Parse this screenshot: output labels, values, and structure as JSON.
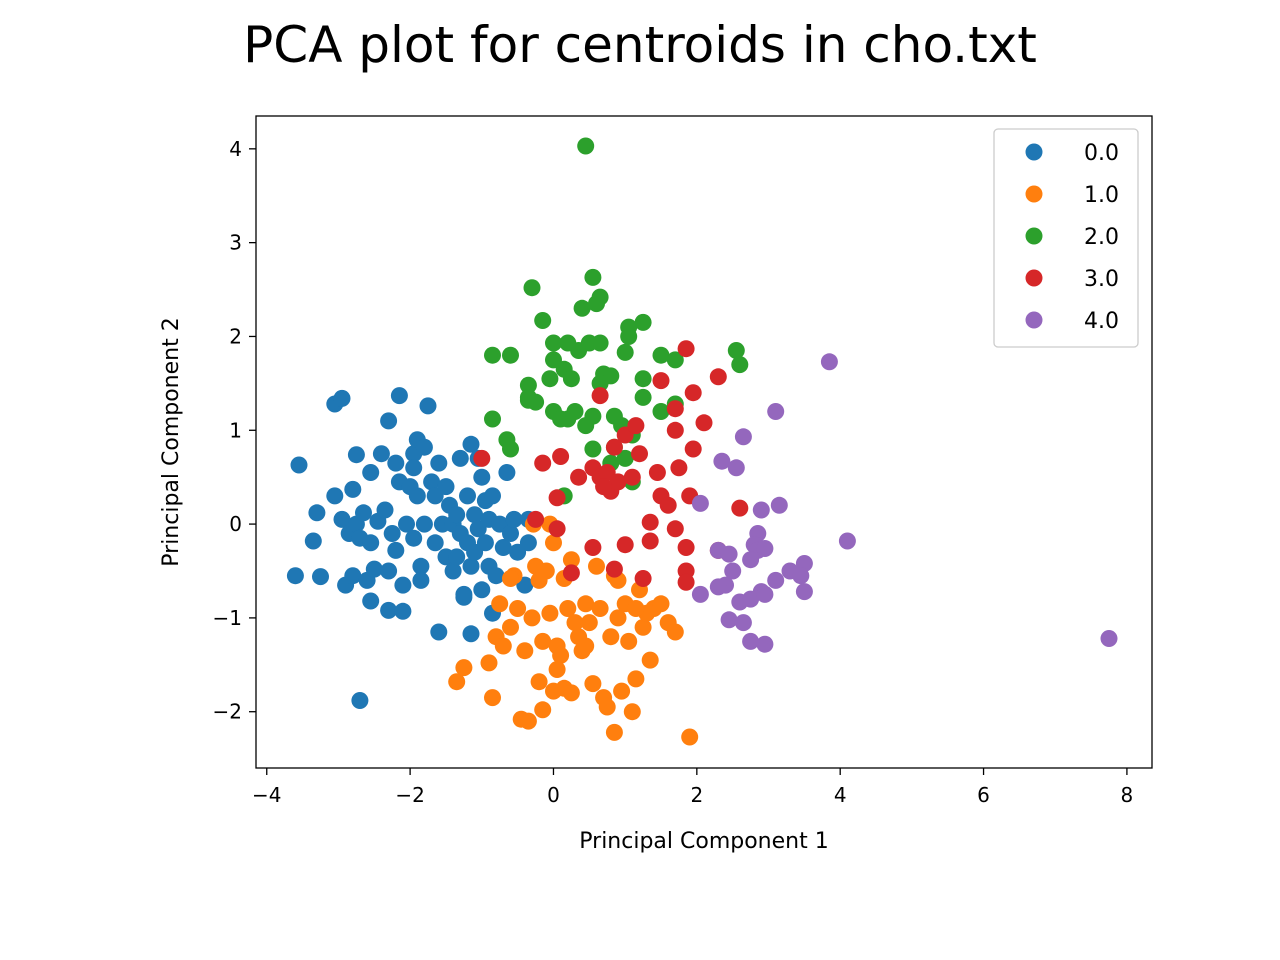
{
  "chart_data": {
    "type": "scatter",
    "title": "PCA plot for centroids in cho.txt",
    "xlabel": "Principal Component 1",
    "ylabel": "Principal Component 2",
    "xlim": [
      -4.15,
      8.35
    ],
    "ylim": [
      -2.6,
      4.35
    ],
    "xticks": [
      -4,
      -2,
      0,
      2,
      4,
      6,
      8
    ],
    "xtick_labels": [
      "−4",
      "−2",
      "0",
      "2",
      "4",
      "6",
      "8"
    ],
    "yticks": [
      -2,
      -1,
      0,
      1,
      2,
      3,
      4
    ],
    "ytick_labels": [
      "−2",
      "−1",
      "0",
      "1",
      "2",
      "3",
      "4"
    ],
    "grid": false,
    "legend_position": "top-right",
    "series": [
      {
        "name": "0.0",
        "color": "#1f77b4",
        "points": [
          [
            -3.6,
            -0.55
          ],
          [
            -3.55,
            0.63
          ],
          [
            -3.35,
            -0.18
          ],
          [
            -3.3,
            0.12
          ],
          [
            -3.25,
            -0.56
          ],
          [
            -3.05,
            0.3
          ],
          [
            -3.05,
            1.28
          ],
          [
            -2.95,
            1.34
          ],
          [
            -2.95,
            0.05
          ],
          [
            -2.9,
            -0.65
          ],
          [
            -2.85,
            -0.1
          ],
          [
            -2.8,
            0.37
          ],
          [
            -2.8,
            -0.55
          ],
          [
            -2.75,
            0.74
          ],
          [
            -2.75,
            0.0
          ],
          [
            -2.7,
            -1.88
          ],
          [
            -2.7,
            -0.15
          ],
          [
            -2.65,
            0.12
          ],
          [
            -2.6,
            -0.6
          ],
          [
            -2.55,
            -0.2
          ],
          [
            -2.55,
            -0.82
          ],
          [
            -2.5,
            -0.48
          ],
          [
            -2.45,
            0.03
          ],
          [
            -2.4,
            0.75
          ],
          [
            -2.35,
            0.15
          ],
          [
            -2.3,
            -0.5
          ],
          [
            -2.3,
            -0.92
          ],
          [
            -2.3,
            1.1
          ],
          [
            -2.25,
            -0.1
          ],
          [
            -2.2,
            0.65
          ],
          [
            -2.2,
            -0.28
          ],
          [
            -2.15,
            0.45
          ],
          [
            -2.15,
            1.37
          ],
          [
            -2.1,
            -0.65
          ],
          [
            -2.1,
            -0.93
          ],
          [
            -2.05,
            0.0
          ],
          [
            -2.0,
            0.4
          ],
          [
            -1.95,
            -0.15
          ],
          [
            -1.95,
            0.75
          ],
          [
            -1.9,
            0.9
          ],
          [
            -1.9,
            0.3
          ],
          [
            -1.85,
            -0.45
          ],
          [
            -1.85,
            -0.6
          ],
          [
            -1.8,
            0.82
          ],
          [
            -1.8,
            0.0
          ],
          [
            -1.75,
            1.26
          ],
          [
            -1.7,
            0.45
          ],
          [
            -1.65,
            -0.2
          ],
          [
            -1.65,
            0.3
          ],
          [
            -1.6,
            0.65
          ],
          [
            -1.6,
            -1.15
          ],
          [
            -1.55,
            0.0
          ],
          [
            -1.5,
            -0.35
          ],
          [
            -1.5,
            0.4
          ],
          [
            -1.45,
            0.2
          ],
          [
            -1.4,
            -0.5
          ],
          [
            -1.4,
            0.0
          ],
          [
            -1.35,
            0.1
          ],
          [
            -1.35,
            -0.35
          ],
          [
            -1.3,
            -0.1
          ],
          [
            -1.3,
            0.7
          ],
          [
            -1.25,
            -0.75
          ],
          [
            -1.2,
            0.3
          ],
          [
            -1.2,
            -0.2
          ],
          [
            -1.15,
            0.85
          ],
          [
            -1.15,
            -0.45
          ],
          [
            -1.1,
            0.1
          ],
          [
            -1.1,
            -0.3
          ],
          [
            -1.05,
            0.7
          ],
          [
            -1.05,
            -0.05
          ],
          [
            -1.0,
            -0.7
          ],
          [
            -1.0,
            0.5
          ],
          [
            -0.95,
            0.25
          ],
          [
            -0.95,
            -0.2
          ],
          [
            -0.9,
            -0.45
          ],
          [
            -0.9,
            0.05
          ],
          [
            -0.85,
            -0.95
          ],
          [
            -0.85,
            0.3
          ],
          [
            -0.8,
            -0.55
          ],
          [
            -0.75,
            0.0
          ],
          [
            -0.7,
            -0.25
          ],
          [
            -0.65,
            0.55
          ],
          [
            -0.6,
            -0.1
          ],
          [
            -0.55,
            0.05
          ],
          [
            -0.5,
            -0.3
          ],
          [
            -0.4,
            -0.65
          ],
          [
            -0.35,
            0.05
          ],
          [
            -0.35,
            -0.2
          ],
          [
            -1.15,
            -1.17
          ],
          [
            -1.25,
            -0.78
          ],
          [
            -1.95,
            0.6
          ],
          [
            -2.55,
            0.55
          ]
        ]
      },
      {
        "name": "1.0",
        "color": "#ff7f0e",
        "points": [
          [
            -1.35,
            -1.68
          ],
          [
            -1.25,
            -1.53
          ],
          [
            -0.9,
            -1.48
          ],
          [
            -0.85,
            -1.85
          ],
          [
            -0.8,
            -1.2
          ],
          [
            -0.75,
            -0.85
          ],
          [
            -0.7,
            -1.3
          ],
          [
            -0.6,
            -1.1
          ],
          [
            -0.55,
            -0.55
          ],
          [
            -0.5,
            -0.9
          ],
          [
            -0.45,
            -2.08
          ],
          [
            -0.4,
            -1.35
          ],
          [
            -0.35,
            -2.1
          ],
          [
            -0.3,
            -1.0
          ],
          [
            -0.25,
            -0.45
          ],
          [
            -0.2,
            -1.68
          ],
          [
            -0.15,
            -1.25
          ],
          [
            -0.15,
            -1.98
          ],
          [
            -0.1,
            -0.5
          ],
          [
            -0.05,
            -0.95
          ],
          [
            0.0,
            -1.78
          ],
          [
            0.05,
            -1.3
          ],
          [
            0.1,
            -1.4
          ],
          [
            0.15,
            -1.75
          ],
          [
            0.2,
            -0.9
          ],
          [
            0.25,
            -1.8
          ],
          [
            0.3,
            -1.05
          ],
          [
            0.35,
            -1.2
          ],
          [
            0.4,
            -1.35
          ],
          [
            0.45,
            -0.85
          ],
          [
            0.5,
            -1.05
          ],
          [
            0.55,
            -1.7
          ],
          [
            0.6,
            -0.45
          ],
          [
            0.65,
            -0.9
          ],
          [
            0.7,
            -1.85
          ],
          [
            0.75,
            -1.95
          ],
          [
            0.8,
            -1.2
          ],
          [
            0.85,
            -0.55
          ],
          [
            0.85,
            -2.22
          ],
          [
            0.9,
            -1.0
          ],
          [
            0.95,
            -1.78
          ],
          [
            1.0,
            -0.85
          ],
          [
            1.05,
            -1.25
          ],
          [
            1.1,
            -2.0
          ],
          [
            1.15,
            -1.65
          ],
          [
            1.2,
            -0.7
          ],
          [
            1.25,
            -1.1
          ],
          [
            1.3,
            -0.95
          ],
          [
            1.35,
            -1.45
          ],
          [
            1.4,
            -0.9
          ],
          [
            1.5,
            -0.85
          ],
          [
            1.6,
            -1.05
          ],
          [
            1.7,
            -1.15
          ],
          [
            1.9,
            -2.27
          ],
          [
            -0.05,
            0.0
          ],
          [
            0.0,
            -0.2
          ],
          [
            0.05,
            -1.55
          ],
          [
            0.25,
            -0.38
          ],
          [
            -0.2,
            -0.6
          ],
          [
            0.45,
            -1.3
          ],
          [
            -0.6,
            -0.58
          ],
          [
            0.15,
            -0.58
          ],
          [
            -0.28,
            0.0
          ],
          [
            1.15,
            -0.9
          ],
          [
            0.9,
            -0.6
          ]
        ]
      },
      {
        "name": "2.0",
        "color": "#2ca02c",
        "points": [
          [
            0.45,
            4.03
          ],
          [
            0.55,
            2.63
          ],
          [
            0.65,
            2.42
          ],
          [
            0.4,
            2.3
          ],
          [
            0.6,
            2.35
          ],
          [
            -0.3,
            2.52
          ],
          [
            -0.15,
            2.17
          ],
          [
            1.05,
            2.1
          ],
          [
            1.25,
            2.15
          ],
          [
            0.0,
            1.93
          ],
          [
            0.2,
            1.93
          ],
          [
            0.35,
            1.85
          ],
          [
            0.5,
            1.93
          ],
          [
            0.65,
            1.93
          ],
          [
            1.0,
            1.83
          ],
          [
            1.5,
            1.8
          ],
          [
            1.7,
            1.75
          ],
          [
            2.55,
            1.85
          ],
          [
            2.6,
            1.7
          ],
          [
            -0.85,
            1.8
          ],
          [
            -0.6,
            1.8
          ],
          [
            0.0,
            1.75
          ],
          [
            0.15,
            1.65
          ],
          [
            0.7,
            1.6
          ],
          [
            0.8,
            1.58
          ],
          [
            1.25,
            1.55
          ],
          [
            -0.05,
            1.55
          ],
          [
            -0.35,
            1.48
          ],
          [
            -0.35,
            1.35
          ],
          [
            -0.25,
            1.3
          ],
          [
            0.0,
            1.2
          ],
          [
            0.1,
            1.12
          ],
          [
            0.2,
            1.12
          ],
          [
            0.3,
            1.2
          ],
          [
            0.45,
            1.05
          ],
          [
            0.55,
            1.15
          ],
          [
            0.85,
            1.15
          ],
          [
            0.95,
            1.05
          ],
          [
            1.1,
            0.95
          ],
          [
            1.25,
            1.35
          ],
          [
            1.5,
            1.2
          ],
          [
            1.7,
            1.28
          ],
          [
            -0.85,
            1.12
          ],
          [
            -0.65,
            0.9
          ],
          [
            -0.6,
            0.8
          ],
          [
            0.55,
            0.8
          ],
          [
            0.85,
            0.82
          ],
          [
            1.0,
            0.7
          ],
          [
            0.8,
            0.65
          ],
          [
            1.1,
            0.45
          ],
          [
            0.15,
            0.3
          ],
          [
            -0.35,
            1.32
          ],
          [
            0.25,
            1.55
          ],
          [
            1.05,
            2.0
          ],
          [
            0.65,
            1.5
          ]
        ]
      },
      {
        "name": "3.0",
        "color": "#d62728",
        "points": [
          [
            1.85,
            1.87
          ],
          [
            2.3,
            1.57
          ],
          [
            1.5,
            1.53
          ],
          [
            1.95,
            1.4
          ],
          [
            0.65,
            1.37
          ],
          [
            1.7,
            1.23
          ],
          [
            2.1,
            1.08
          ],
          [
            1.7,
            1.0
          ],
          [
            1.0,
            0.95
          ],
          [
            1.15,
            1.05
          ],
          [
            0.85,
            0.82
          ],
          [
            1.2,
            0.75
          ],
          [
            1.95,
            0.8
          ],
          [
            -1.0,
            0.7
          ],
          [
            -0.15,
            0.65
          ],
          [
            0.1,
            0.72
          ],
          [
            0.55,
            0.6
          ],
          [
            0.65,
            0.5
          ],
          [
            0.75,
            0.55
          ],
          [
            0.8,
            0.35
          ],
          [
            0.9,
            0.45
          ],
          [
            1.1,
            0.5
          ],
          [
            1.45,
            0.55
          ],
          [
            1.75,
            0.6
          ],
          [
            1.5,
            0.3
          ],
          [
            1.6,
            0.2
          ],
          [
            1.9,
            0.3
          ],
          [
            2.6,
            0.17
          ],
          [
            0.05,
            0.28
          ],
          [
            1.35,
            0.02
          ],
          [
            1.7,
            -0.05
          ],
          [
            0.25,
            -0.52
          ],
          [
            0.55,
            -0.25
          ],
          [
            0.85,
            -0.48
          ],
          [
            1.0,
            -0.22
          ],
          [
            1.25,
            -0.58
          ],
          [
            1.35,
            -0.18
          ],
          [
            1.85,
            -0.25
          ],
          [
            1.85,
            -0.5
          ],
          [
            1.85,
            -0.62
          ],
          [
            2.3,
            -0.28
          ],
          [
            -0.25,
            0.05
          ],
          [
            0.05,
            -0.05
          ],
          [
            0.35,
            0.5
          ],
          [
            0.7,
            0.4
          ]
        ]
      },
      {
        "name": "4.0",
        "color": "#9467bd",
        "points": [
          [
            3.85,
            1.73
          ],
          [
            3.1,
            1.2
          ],
          [
            2.65,
            0.93
          ],
          [
            2.35,
            0.67
          ],
          [
            2.55,
            0.6
          ],
          [
            2.05,
            0.22
          ],
          [
            2.9,
            0.15
          ],
          [
            3.15,
            0.2
          ],
          [
            2.85,
            -0.1
          ],
          [
            4.1,
            -0.18
          ],
          [
            2.3,
            -0.28
          ],
          [
            2.45,
            -0.32
          ],
          [
            2.8,
            -0.22
          ],
          [
            2.85,
            -0.28
          ],
          [
            2.95,
            -0.26
          ],
          [
            3.5,
            -0.42
          ],
          [
            3.3,
            -0.5
          ],
          [
            2.5,
            -0.5
          ],
          [
            2.75,
            -0.38
          ],
          [
            3.45,
            -0.55
          ],
          [
            3.1,
            -0.6
          ],
          [
            2.4,
            -0.65
          ],
          [
            2.3,
            -0.67
          ],
          [
            2.05,
            -0.75
          ],
          [
            2.9,
            -0.72
          ],
          [
            3.5,
            -0.72
          ],
          [
            2.6,
            -0.83
          ],
          [
            2.75,
            -0.8
          ],
          [
            2.95,
            -0.75
          ],
          [
            2.45,
            -1.02
          ],
          [
            2.65,
            -1.05
          ],
          [
            2.75,
            -1.25
          ],
          [
            2.95,
            -1.28
          ],
          [
            7.75,
            -1.22
          ]
        ]
      }
    ]
  }
}
